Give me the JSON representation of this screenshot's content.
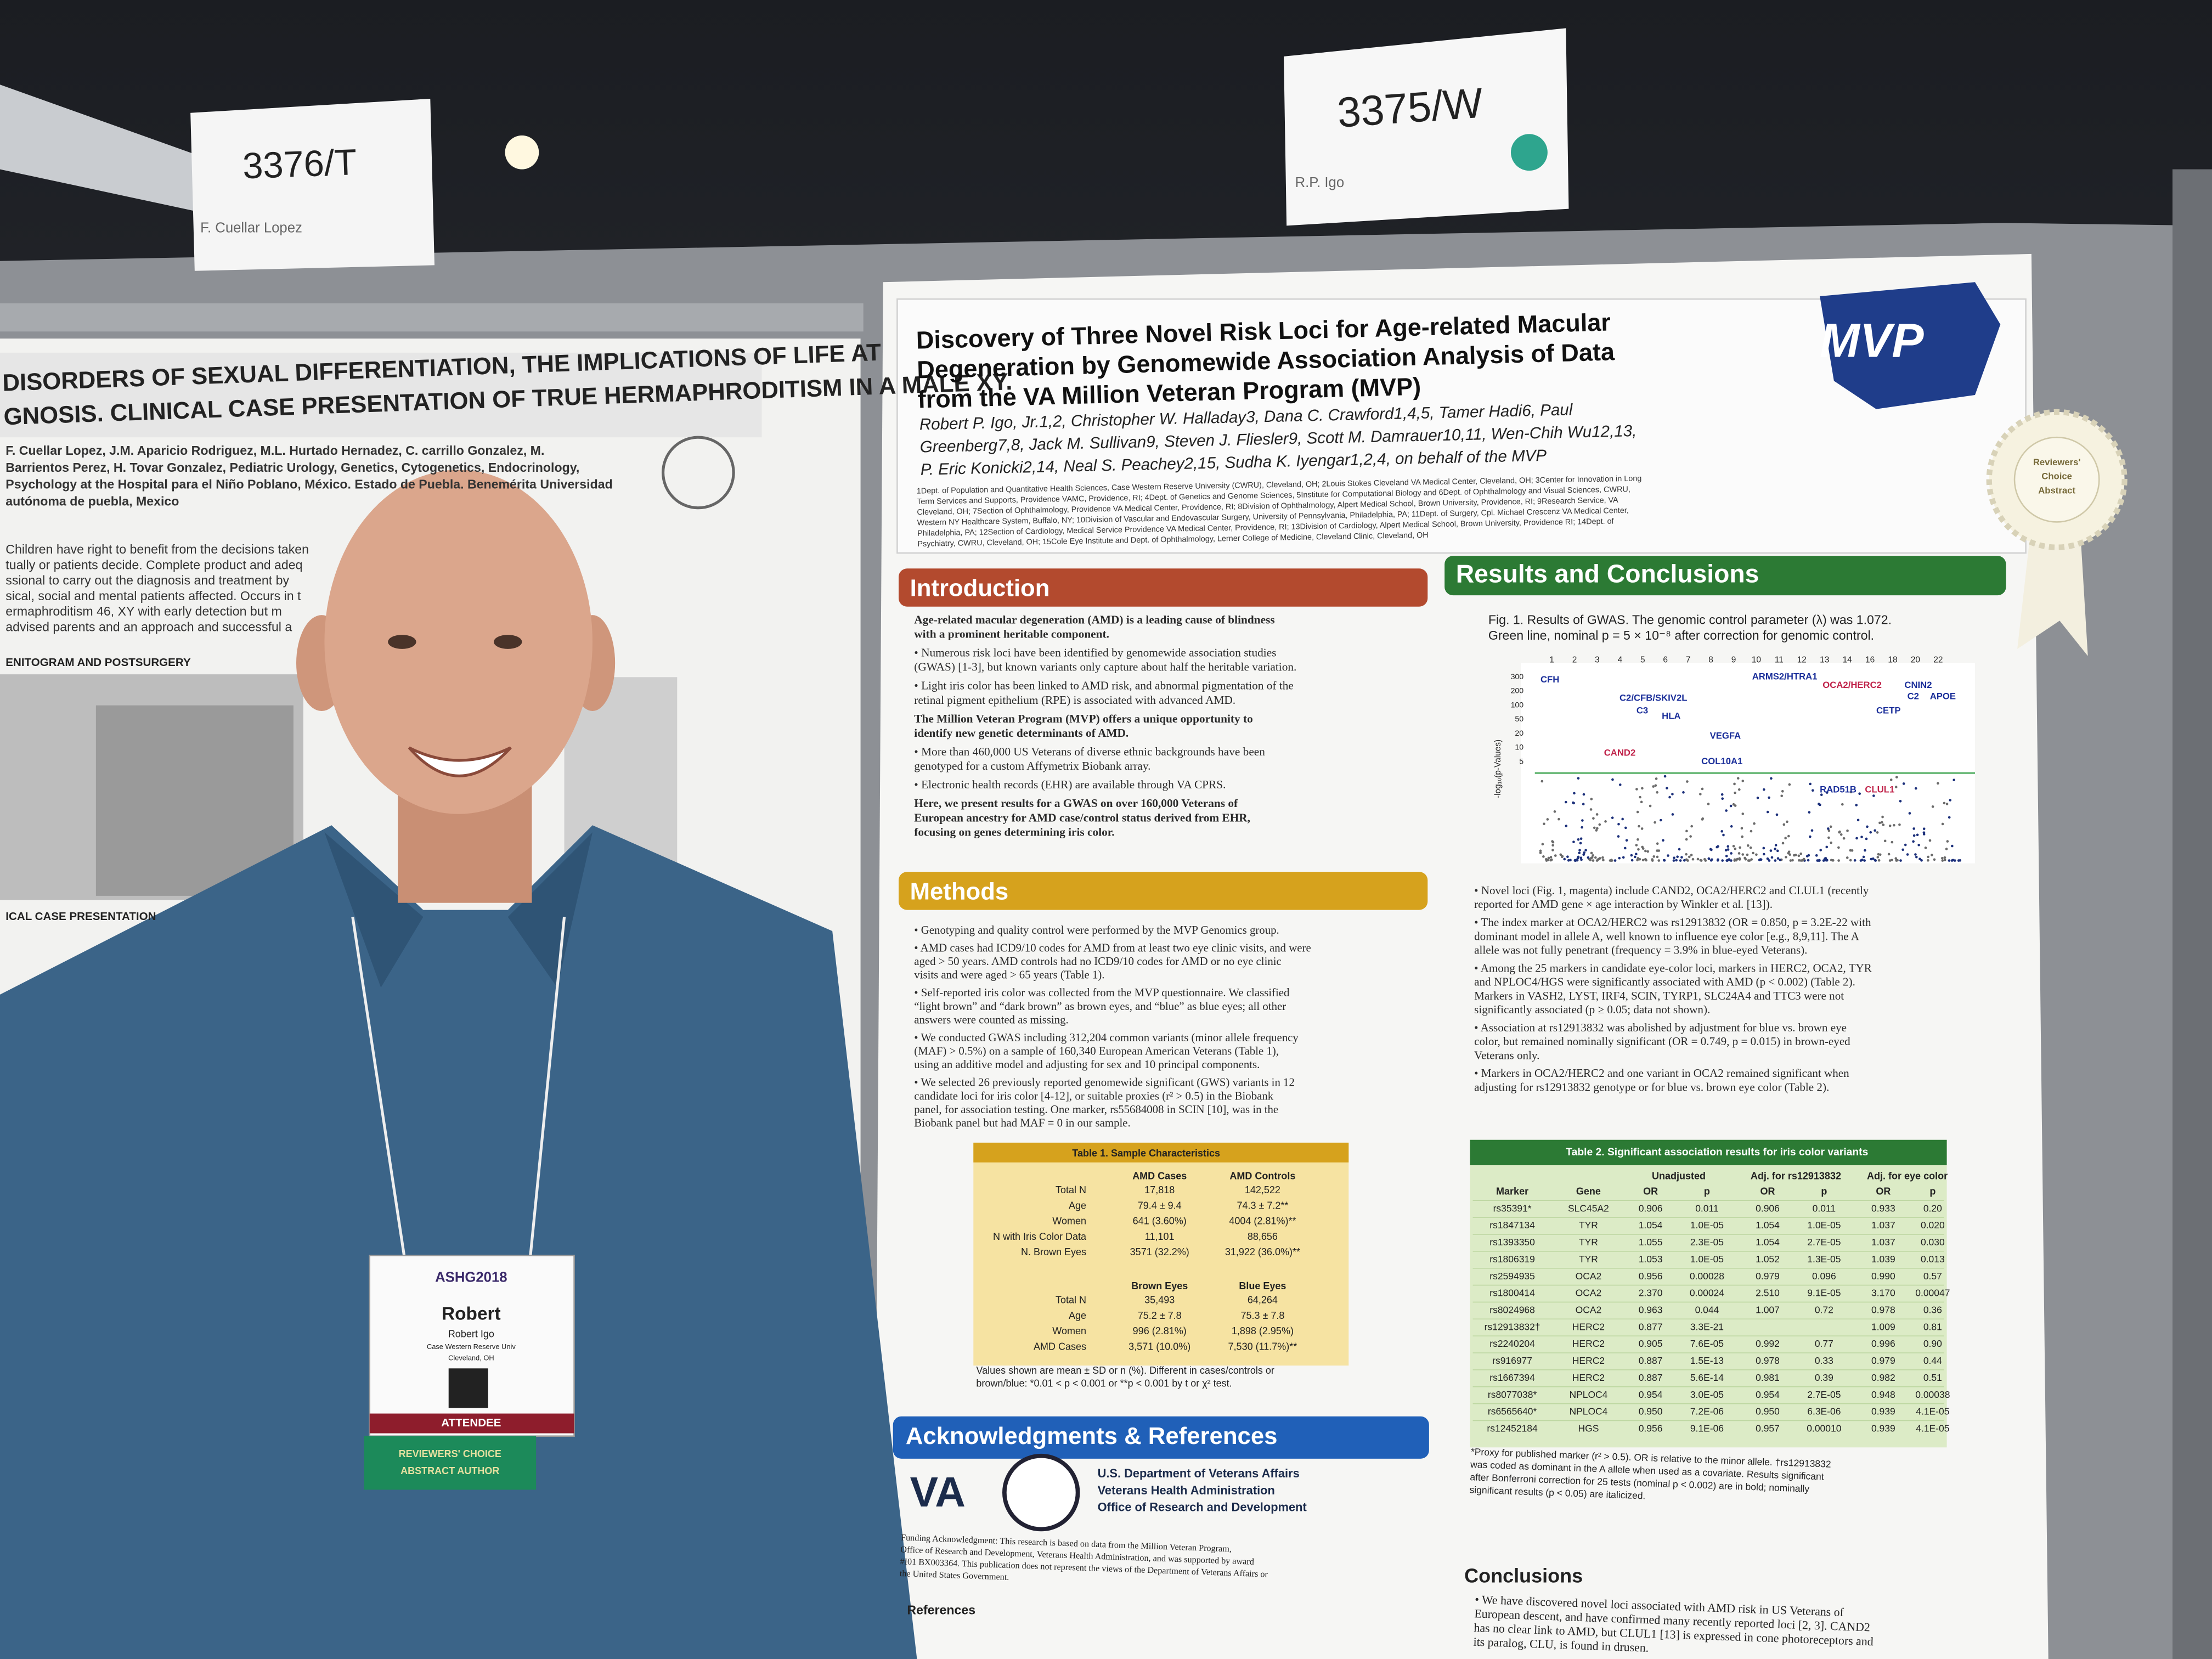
{
  "signs": [
    {
      "number": "3376/T",
      "name": "F. Cuellar Lopez"
    },
    {
      "number": "3375/W",
      "name": "R.P. Igo"
    }
  ],
  "left_poster": {
    "title": [
      "DISORDERS OF SEXUAL DIFFERENTIATION, THE IMPLICATIONS OF LIFE AT",
      "GNOSIS. CLINICAL CASE PRESENTATION OF TRUE HERMAPHRODITISM IN A MALE XY."
    ],
    "authors": [
      "F. Cuellar Lopez, J.M. Aparicio Rodriguez, M.L. Hurtado Hernadez, C. carrillo Gonzalez, M.",
      "Barrientos Perez, H. Tovar Gonzalez, Pediatric Urology, Genetics, Cytogenetics, Endocrinology,",
      "Psychology at the Hospital para el Niño Poblano, México. Estado de Puebla. Benemérita Universidad",
      "autónoma de puebla, Mexico"
    ],
    "intro": [
      "Children have right to benefit from the decisions taken",
      "tually or patients decide. Complete product and adeq",
      "ssional to carry out the diagnosis and treatment by",
      "sical, social and mental patients affected. Occurs in t",
      "ermaphroditism 46, XY with early detection but m",
      "advised parents and an approach and successful a"
    ],
    "sections": [
      "ENITOGRAM AND POSTSURGERY",
      "ICAL CASE PRESENTATION"
    ]
  },
  "poster": {
    "title": [
      "Discovery of Three Novel Risk Loci for Age-related Macular",
      "Degeneration by Genomewide Association Analysis of Data",
      "from the VA Million Veteran Program (MVP)"
    ],
    "logo": "MVP",
    "authors": [
      "Robert P. Igo, Jr.1,2, Christopher W. Halladay3, Dana C. Crawford1,4,5, Tamer Hadi6, Paul",
      "Greenberg7,8, Jack M. Sullivan9, Steven J. Fliesler9, Scott M. Damrauer10,11, Wen-Chih Wu12,13,",
      "P. Eric Konicki2,14, Neal S. Peachey2,15, Sudha K. Iyengar1,2,4, on behalf of the MVP"
    ],
    "affiliations": [
      "1Dept. of Population and Quantitative Health Sciences, Case Western Reserve University (CWRU), Cleveland, OH; 2Louis Stokes Cleveland VA Medical Center, Cleveland, OH; 3Center for Innovation in Long",
      "Term Services and Supports, Providence VAMC, Providence, RI; 4Dept. of Genetics and Genome Sciences, 5Institute for Computational Biology and 6Dept. of Ophthalmology and Visual Sciences, CWRU,",
      "Cleveland, OH; 7Section of Ophthalmology, Providence VA Medical Center, Providence, RI; 8Division of Ophthalmology, Alpert Medical School, Brown University, Providence, RI; 9Research Service, VA",
      "Western NY Healthcare System, Buffalo, NY; 10Division of Vascular and Endovascular Surgery, University of Pennsylvania, Philadelphia, PA; 11Dept. of Surgery, Cpl. Michael Crescenz VA Medical Center,",
      "Philadelphia, PA; 12Section of Cardiology, Medical Service Providence VA Medical Center, Providence, RI; 13Division of Cardiology, Alpert Medical School, Brown University, Providence RI; 14Dept. of",
      "Psychiatry, CWRU, Cleveland, OH; 15Cole Eye Institute and Dept. of Ophthalmology, Lerner College of Medicine, Cleveland Clinic, Cleveland, OH"
    ],
    "introduction": {
      "heading": "Introduction",
      "paragraphs": [
        {
          "bold": true,
          "lines": [
            "Age-related macular degeneration (AMD) is a leading cause of blindness",
            "with a prominent heritable component."
          ]
        },
        {
          "bold": false,
          "lines": [
            "• Numerous risk loci have been identified by genomewide association studies",
            "(GWAS) [1-3], but known variants only capture about half the heritable variation."
          ]
        },
        {
          "bold": false,
          "lines": [
            "• Light iris color has been linked to AMD risk, and abnormal pigmentation of the",
            "retinal pigment epithelium (RPE) is associated with advanced AMD."
          ]
        },
        {
          "bold": true,
          "lines": [
            "The Million Veteran Program (MVP) offers a unique opportunity to",
            "identify new genetic determinants of AMD."
          ]
        },
        {
          "bold": false,
          "lines": [
            "• More than 460,000 US Veterans of diverse ethnic backgrounds have been",
            "genotyped for a custom Affymetrix Biobank array."
          ]
        },
        {
          "bold": false,
          "lines": [
            "• Electronic health records (EHR) are available through VA CPRS."
          ]
        },
        {
          "bold": true,
          "lines": [
            "Here, we present results for a GWAS on over 160,000 Veterans of",
            "European ancestry for AMD case/control status derived from EHR,",
            "focusing on genes determining iris color."
          ]
        }
      ]
    },
    "methods": {
      "heading": "Methods",
      "paragraphs": [
        {
          "bold": false,
          "lines": [
            "• Genotyping and quality control were performed by the MVP Genomics group."
          ]
        },
        {
          "bold": false,
          "lines": [
            "• AMD cases had ICD9/10 codes for AMD from at least two eye clinic visits, and were",
            "aged > 50 years.  AMD controls had no ICD9/10 codes for AMD or no eye clinic",
            "visits and were aged > 65 years (Table 1)."
          ]
        },
        {
          "bold": false,
          "lines": [
            "• Self-reported iris color was collected from the MVP questionnaire. We classified",
            "“light brown” and “dark brown” as brown eyes, and “blue” as blue eyes; all other",
            "answers were counted as missing."
          ]
        },
        {
          "bold": false,
          "lines": [
            "• We conducted GWAS including 312,204 common variants (minor allele frequency",
            "(MAF) > 0.5%) on a sample of 160,340 European American Veterans (Table 1),",
            "using an additive model and adjusting for sex and 10 principal components."
          ]
        },
        {
          "bold": false,
          "lines": [
            "• We selected 26 previously reported genomewide significant (GWS) variants in 12",
            "candidate loci for iris color [4-12], or suitable proxies (r² > 0.5) in the Biobank",
            "panel, for association testing.  One marker, rs55684008 in SCIN [10], was in the",
            "Biobank panel but had MAF = 0 in our sample."
          ]
        }
      ]
    },
    "table1": {
      "title": "Table 1.  Sample Characteristics",
      "header1": [
        "AMD Cases",
        "AMD Controls"
      ],
      "rows1": [
        [
          "Total N",
          "17,818",
          "142,522"
        ],
        [
          "Age",
          "79.4 ± 9.4",
          "74.3 ± 7.2**"
        ],
        [
          "Women",
          "641 (3.60%)",
          "4004 (2.81%)**"
        ],
        [
          "N with Iris Color Data",
          "11,101",
          "88,656"
        ],
        [
          "N. Brown Eyes",
          "3571 (32.2%)",
          "31,922 (36.0%)**"
        ]
      ],
      "header2": [
        "Brown Eyes",
        "Blue Eyes"
      ],
      "rows2": [
        [
          "Total N",
          "35,493",
          "64,264"
        ],
        [
          "Age",
          "75.2 ± 7.8",
          "75.3 ± 7.8"
        ],
        [
          "Women",
          "996 (2.81%)",
          "1,898 (2.95%)"
        ],
        [
          "AMD Cases",
          "3,571 (10.0%)",
          "7,530 (11.7%)**"
        ]
      ],
      "note": [
        "Values shown are mean ± SD or n (%).  Different in cases/controls or",
        "brown/blue:  *0.01 < p < 0.001 or **p < 0.001 by t or χ² test."
      ]
    },
    "acknowledgments": {
      "heading": "Acknowledgments & References",
      "va": "VA",
      "va_lines": [
        "U.S. Department of Veterans Affairs",
        "Veterans Health Administration",
        "Office of Research and Development"
      ],
      "funding": [
        "Funding Acknowledgment: This research is based on data from the Million Veteran Program,",
        "Office of Research and Development, Veterans Health Administration, and was supported by award",
        "#I01 BX003364. This publication does not represent the views of the Department of Veterans Affairs or",
        "the United States Government."
      ],
      "references": "References"
    },
    "results": {
      "heading": "Results and Conclusions",
      "figure_caption": [
        "Fig. 1.  Results of GWAS.  The genomic control parameter (λ) was 1.072.",
        "Green line, nominal p = 5 × 10⁻⁸ after correction for genomic control."
      ],
      "chromosomes": [
        "1",
        "2",
        "3",
        "4",
        "5",
        "6",
        "7",
        "8",
        "9",
        "10",
        "11",
        "12",
        "13",
        "14",
        "16",
        "18",
        "20",
        "22"
      ],
      "yticks": [
        "300",
        "200",
        "100",
        "50",
        "20",
        "10",
        "5"
      ],
      "ylabel": "-log₁₀(p-Values)",
      "genes_known": [
        "CFH",
        "C2/CFB/SKIV2L",
        "HLA",
        "C3",
        "VEGFA",
        "COL10A1",
        "ARMS2/HTRA1",
        "CETP",
        "CNIN2",
        "C2",
        "APOE",
        "RAD51B"
      ],
      "genes_novel": [
        "CAND2",
        "OCA2/HERC2",
        "CLUL1"
      ],
      "bullets": [
        [
          "• Novel loci (Fig. 1, magenta) include CAND2, OCA2/HERC2 and CLUL1 (recently",
          "reported for AMD gene × age interaction by Winkler et al. [13])."
        ],
        [
          "• The index marker at OCA2/HERC2 was rs12913832 (OR = 0.850, p = 3.2E-22 with",
          "dominant model in allele A, well known to influence eye color [e.g., 8,9,11]. The A",
          "allele was not fully penetrant (frequency = 3.9% in blue-eyed Veterans)."
        ],
        [
          "• Among the 25 markers in candidate eye-color loci, markers in HERC2, OCA2, TYR",
          "and NPLOC4/HGS were significantly associated with AMD (p < 0.002) (Table 2).",
          "Markers in VASH2, LYST, IRF4, SCIN, TYRP1, SLC24A4 and TTC3 were not",
          "significantly associated (p ≥ 0.05; data not shown)."
        ],
        [
          "• Association at rs12913832 was abolished by adjustment for blue vs. brown eye",
          "color, but remained nominally significant (OR = 0.749, p = 0.015) in brown-eyed",
          "Veterans only."
        ],
        [
          "• Markers in OCA2/HERC2 and one variant in OCA2 remained significant when",
          "adjusting for rs12913832 genotype or for blue vs. brown eye color (Table 2)."
        ]
      ]
    },
    "table2": {
      "title": "Table 2.  Significant association results for iris color variants",
      "groups": [
        "Unadjusted",
        "Adj. for rs12913832",
        "Adj. for eye color"
      ],
      "columns": [
        "Marker",
        "Gene",
        "OR",
        "p",
        "OR",
        "p",
        "OR",
        "p"
      ],
      "rows": [
        [
          "rs35391*",
          "SLC45A2",
          "0.906",
          "0.011",
          "0.906",
          "0.011",
          "0.933",
          "0.20"
        ],
        [
          "rs1847134",
          "TYR",
          "1.054",
          "1.0E-05",
          "1.054",
          "1.0E-05",
          "1.037",
          "0.020"
        ],
        [
          "rs1393350",
          "TYR",
          "1.055",
          "2.3E-05",
          "1.054",
          "2.7E-05",
          "1.037",
          "0.030"
        ],
        [
          "rs1806319",
          "TYR",
          "1.053",
          "1.0E-05",
          "1.052",
          "1.3E-05",
          "1.039",
          "0.013"
        ],
        [
          "rs2594935",
          "OCA2",
          "0.956",
          "0.00028",
          "0.979",
          "0.096",
          "0.990",
          "0.57"
        ],
        [
          "rs1800414",
          "OCA2",
          "2.370",
          "0.00024",
          "2.510",
          "9.1E-05",
          "3.170",
          "0.00047"
        ],
        [
          "rs8024968",
          "OCA2",
          "0.963",
          "0.044",
          "1.007",
          "0.72",
          "0.978",
          "0.36"
        ],
        [
          "rs12913832†",
          "HERC2",
          "0.877",
          "3.3E-21",
          "",
          "",
          "1.009",
          "0.81"
        ],
        [
          "rs2240204",
          "HERC2",
          "0.905",
          "7.6E-05",
          "0.992",
          "0.77",
          "0.996",
          "0.90"
        ],
        [
          "rs916977",
          "HERC2",
          "0.887",
          "1.5E-13",
          "0.978",
          "0.33",
          "0.979",
          "0.44"
        ],
        [
          "rs1667394",
          "HERC2",
          "0.887",
          "5.6E-14",
          "0.981",
          "0.39",
          "0.982",
          "0.51"
        ],
        [
          "rs8077038*",
          "NPLOC4",
          "0.954",
          "3.0E-05",
          "0.954",
          "2.7E-05",
          "0.948",
          "0.00038"
        ],
        [
          "rs6565640*",
          "NPLOC4",
          "0.950",
          "7.2E-06",
          "0.950",
          "6.3E-06",
          "0.939",
          "4.1E-05"
        ],
        [
          "rs12452184",
          "HGS",
          "0.956",
          "9.1E-06",
          "0.957",
          "0.00010",
          "0.939",
          "4.1E-05"
        ]
      ],
      "footnote": [
        "*Proxy for published marker (r² > 0.5).  OR is relative to the minor allele.  †rs12913832",
        "was coded as dominant in the A allele when used as a covariate.  Results significant",
        "after Bonferroni correction for 25 tests (nominal p < 0.002) are in bold; nominally",
        "significant results (p < 0.05) are italicized."
      ]
    },
    "conclusions": {
      "heading": "Conclusions",
      "lines": [
        "• We have discovered novel loci associated with AMD risk in US Veterans of",
        "European descent, and have confirmed many recently reported loci [2, 3].  CAND2",
        "has no clear link to AMD, but CLUL1 [13] is expressed in cone photoreceptors and",
        "its paralog, CLU, is found in drusen."
      ]
    }
  },
  "rosette": [
    "Reviewers'",
    "Choice",
    "Abstract"
  ],
  "badge": {
    "event": "ASHG2018",
    "first_name": "Robert",
    "full_name": "Robert Igo",
    "affiliation": "Case Western Reserve Univ",
    "city": "Cleveland, OH",
    "type": "ATTENDEE",
    "ribbon": [
      "REVIEWERS' CHOICE",
      "ABSTRACT AUTHOR"
    ]
  }
}
